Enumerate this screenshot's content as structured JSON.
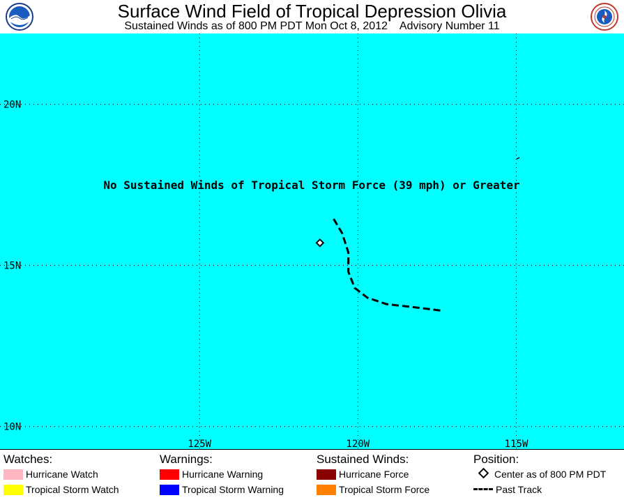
{
  "header": {
    "title": "Surface Wind Field of Tropical Depression Olivia",
    "subtitle": "Sustained Winds as of 800 PM PDT Mon Oct 8, 2012    Advisory Number 11",
    "left_logo": "noaa-logo",
    "right_logo": "national-weather-service-logo"
  },
  "map": {
    "background_color": "#00FFFF",
    "lat_range": [
      9.3,
      22.2
    ],
    "lon_range": [
      -131.3,
      -111.6
    ],
    "lat_labels": [
      {
        "lat": 20,
        "label": "20N"
      },
      {
        "lat": 15,
        "label": "15N"
      },
      {
        "lat": 10,
        "label": "10N"
      }
    ],
    "lon_labels": [
      {
        "lon": -125,
        "label": "125W"
      },
      {
        "lon": -120,
        "label": "120W"
      },
      {
        "lon": -115,
        "label": "115W"
      }
    ],
    "message": "No Sustained Winds of Tropical Storm Force (39 mph) or Greater",
    "center_position": {
      "lat": 15.7,
      "lon": -121.2
    },
    "past_track": [
      [
        13.6,
        -117.4
      ],
      [
        13.7,
        -118.2
      ],
      [
        13.8,
        -119.1
      ],
      [
        14.0,
        -119.7
      ],
      [
        14.3,
        -120.1
      ],
      [
        14.8,
        -120.3
      ],
      [
        15.4,
        -120.3
      ],
      [
        16.0,
        -120.5
      ],
      [
        16.5,
        -120.8
      ]
    ]
  },
  "legend": {
    "watches": {
      "heading": "Watches:",
      "items": [
        {
          "label": "Hurricane Watch",
          "color": "#FFB6C1"
        },
        {
          "label": "Tropical Storm Watch",
          "color": "#FFFF00"
        }
      ]
    },
    "warnings": {
      "heading": "Warnings:",
      "items": [
        {
          "label": "Hurricane Warning",
          "color": "#FF0000"
        },
        {
          "label": "Tropical Storm Warning",
          "color": "#0000FF"
        }
      ]
    },
    "sustained_winds": {
      "heading": "Sustained Winds:",
      "items": [
        {
          "label": "Hurricane Force",
          "color": "#8B0000"
        },
        {
          "label": "Tropical Storm Force",
          "color": "#FF8000"
        }
      ]
    },
    "position": {
      "heading": "Position:",
      "center_label": "Center as of 800 PM PDT",
      "track_label": "Past Track"
    }
  }
}
